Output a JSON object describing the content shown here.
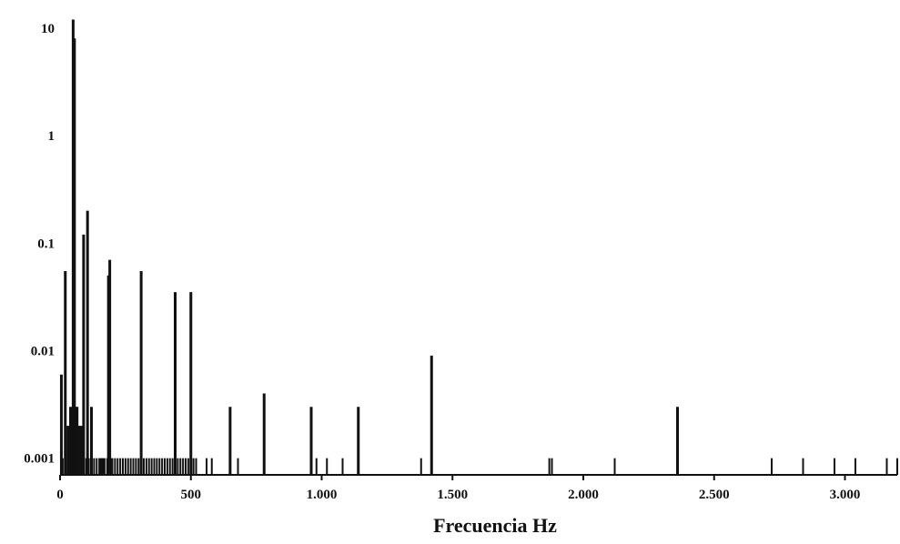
{
  "chart_data": {
    "type": "bar",
    "xlabel": "Frecuencia  Hz",
    "ylabel": "",
    "xlim": [
      0,
      3200
    ],
    "ylim": [
      0.0007,
      15
    ],
    "yscale": "log",
    "grid": false,
    "x_ticks": [
      {
        "value": 0,
        "label": "0"
      },
      {
        "value": 500,
        "label": "500"
      },
      {
        "value": 1000,
        "label": "1.000"
      },
      {
        "value": 1500,
        "label": "1.500"
      },
      {
        "value": 2000,
        "label": "2.000"
      },
      {
        "value": 2500,
        "label": "2.500"
      },
      {
        "value": 3000,
        "label": "3.000"
      }
    ],
    "y_ticks": [
      {
        "value": 0.001,
        "label": "0.001"
      },
      {
        "value": 0.01,
        "label": "0.01"
      },
      {
        "value": 0.1,
        "label": "0.1"
      },
      {
        "value": 1,
        "label": "1"
      },
      {
        "value": 10,
        "label": "10"
      }
    ],
    "series": [
      {
        "color": "#111111",
        "x": [
          5,
          10,
          20,
          30,
          40,
          50,
          55,
          60,
          65,
          70,
          80,
          90,
          100,
          105,
          110,
          120,
          130,
          140,
          150,
          155,
          160,
          165,
          170,
          180,
          185,
          190,
          195,
          200,
          210,
          220,
          230,
          240,
          250,
          260,
          270,
          280,
          290,
          300,
          310,
          320,
          330,
          340,
          350,
          360,
          370,
          380,
          390,
          400,
          410,
          420,
          430,
          440,
          450,
          460,
          470,
          480,
          490,
          500,
          510,
          520,
          560,
          580,
          650,
          680,
          780,
          960,
          980,
          1020,
          1080,
          1140,
          1380,
          1420,
          1870,
          1880,
          2120,
          2360,
          2720,
          2840,
          2960,
          3040,
          3160,
          3200
        ],
        "y": [
          0.006,
          0.001,
          0.055,
          0.002,
          0.003,
          12,
          8,
          0.003,
          0.003,
          0.002,
          0.002,
          0.12,
          0.001,
          0.2,
          0.001,
          0.003,
          0.001,
          0.001,
          0.001,
          0.001,
          0.001,
          0.001,
          0.001,
          0.001,
          0.05,
          0.07,
          0.001,
          0.001,
          0.001,
          0.001,
          0.001,
          0.001,
          0.001,
          0.001,
          0.001,
          0.001,
          0.001,
          0.001,
          0.055,
          0.001,
          0.001,
          0.001,
          0.001,
          0.001,
          0.001,
          0.001,
          0.001,
          0.001,
          0.001,
          0.001,
          0.001,
          0.035,
          0.001,
          0.001,
          0.001,
          0.001,
          0.001,
          0.035,
          0.001,
          0.001,
          0.001,
          0.001,
          0.003,
          0.001,
          0.004,
          0.003,
          0.001,
          0.001,
          0.001,
          0.003,
          0.001,
          0.009,
          0.001,
          0.001,
          0.001,
          0.003,
          0.001,
          0.001,
          0.001,
          0.001,
          0.001,
          0.001
        ]
      }
    ]
  }
}
